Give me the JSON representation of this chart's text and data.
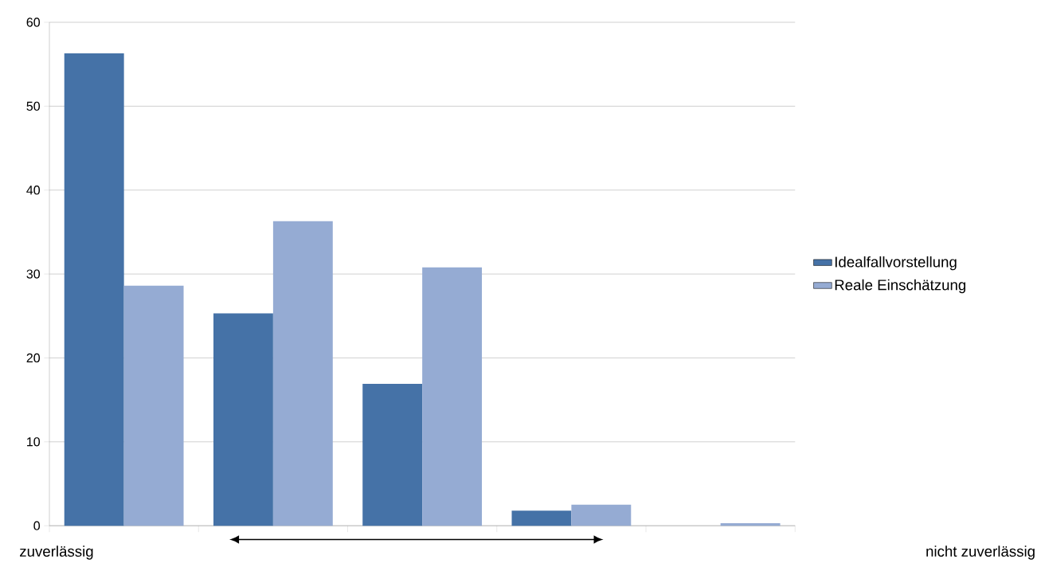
{
  "chart_data": {
    "type": "bar",
    "categories": [
      null,
      null,
      null,
      null,
      null
    ],
    "series": [
      {
        "name": "Idealfallvorstellung",
        "color": "#4572a7",
        "values": [
          56.3,
          25.3,
          16.9,
          1.8,
          0
        ]
      },
      {
        "name": "Reale Einschätzung",
        "color": "#95abd3",
        "values": [
          28.6,
          36.3,
          30.8,
          2.5,
          0.3
        ]
      }
    ],
    "ylim": [
      0,
      60
    ],
    "yticks": [
      0,
      10,
      20,
      30,
      40,
      50,
      60
    ],
    "grid": "y",
    "legend": "right",
    "annotations": [
      "zuverlässig",
      "nicht zuverlässig"
    ]
  }
}
